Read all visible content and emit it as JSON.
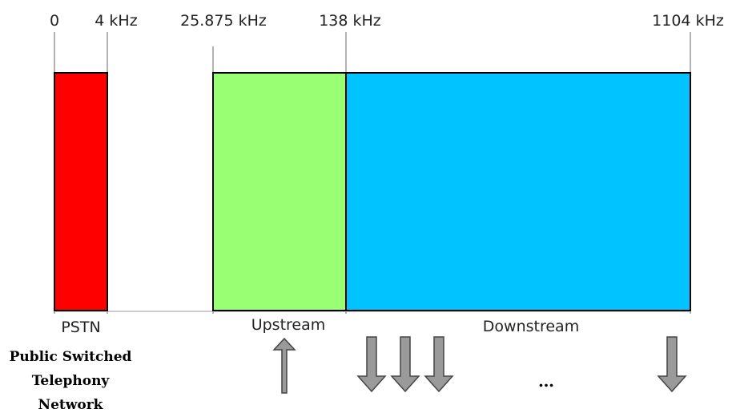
{
  "frequency_markers": [
    {
      "label": "0"
    },
    {
      "label": "4 kHz"
    },
    {
      "label": "25.875 kHz"
    },
    {
      "label": "138 kHz"
    },
    {
      "label": "1104 kHz"
    }
  ],
  "bands": [
    {
      "label": "PSTN",
      "color": "#ff0000"
    },
    {
      "label": "Upstream",
      "color": "#99ff73"
    },
    {
      "label": "Downstream",
      "color": "#00c3ff"
    }
  ],
  "caption": {
    "line1": "Public Switched",
    "line2": "Telephony Network"
  },
  "ellipsis": "…",
  "colors": {
    "arrow_fill": "#9a9a9a",
    "arrow_stroke": "#444444",
    "tick_line": "#999999",
    "band_border": "#000000"
  }
}
